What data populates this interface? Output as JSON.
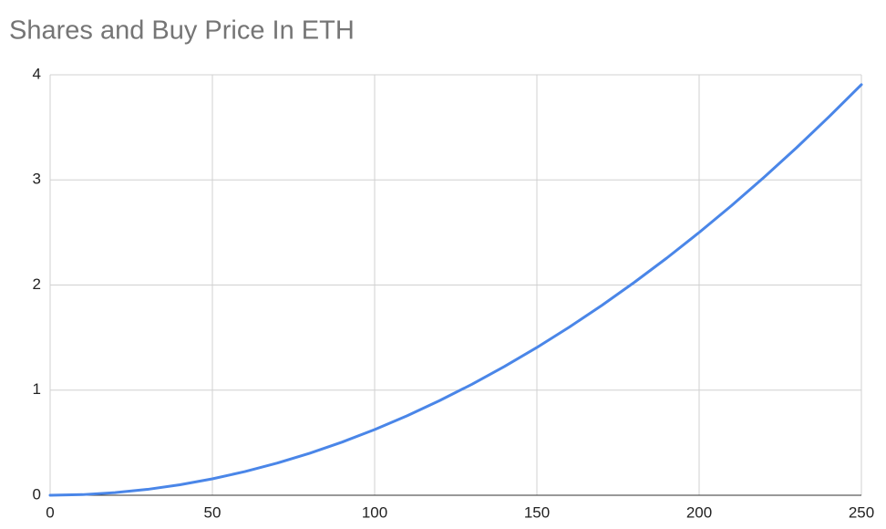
{
  "chart_data": {
    "type": "line",
    "title": "Shares and Buy Price In ETH",
    "x": [
      0,
      10,
      20,
      30,
      40,
      50,
      60,
      70,
      80,
      90,
      100,
      110,
      120,
      130,
      140,
      150,
      160,
      170,
      180,
      190,
      200,
      210,
      220,
      230,
      240,
      250
    ],
    "values": [
      0,
      0.006,
      0.025,
      0.056,
      0.1,
      0.156,
      0.225,
      0.306,
      0.4,
      0.506,
      0.625,
      0.756,
      0.9,
      1.056,
      1.225,
      1.406,
      1.6,
      1.806,
      2.025,
      2.256,
      2.5,
      2.756,
      3.025,
      3.306,
      3.6,
      3.906
    ],
    "color": "#4a86e8",
    "xlim": [
      0,
      250
    ],
    "xticks": [
      0,
      50,
      100,
      150,
      200,
      250
    ],
    "ylim": [
      0,
      4
    ],
    "yticks": [
      0,
      1,
      2,
      3,
      4
    ],
    "grid": true
  }
}
